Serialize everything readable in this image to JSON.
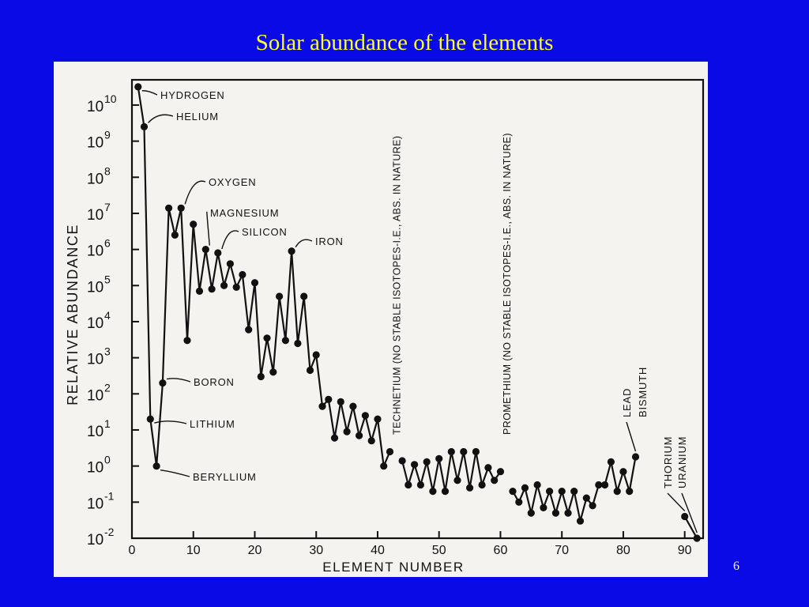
{
  "slide": {
    "title": "Solar abundance of the elements",
    "page_number": "6"
  },
  "chart_data": {
    "type": "line",
    "title": "",
    "xlabel": "ELEMENT NUMBER",
    "ylabel": "RELATIVE ABUNDANCE",
    "x_scale": "linear",
    "y_scale": "log",
    "xlim": [
      0,
      93
    ],
    "ylim": [
      0.01,
      50000000000
    ],
    "x_ticks": [
      0,
      10,
      20,
      30,
      40,
      50,
      60,
      70,
      80,
      90
    ],
    "y_ticks": [
      {
        "base": "10",
        "exp": "10",
        "value": 10000000000
      },
      {
        "base": "10",
        "exp": "9",
        "value": 1000000000
      },
      {
        "base": "10",
        "exp": "8",
        "value": 100000000
      },
      {
        "base": "10",
        "exp": "7",
        "value": 10000000
      },
      {
        "base": "10",
        "exp": "6",
        "value": 1000000
      },
      {
        "base": "10",
        "exp": "5",
        "value": 100000
      },
      {
        "base": "10",
        "exp": "4",
        "value": 10000
      },
      {
        "base": "10",
        "exp": "3",
        "value": 1000
      },
      {
        "base": "10",
        "exp": "2",
        "value": 100
      },
      {
        "base": "10",
        "exp": "1",
        "value": 10
      },
      {
        "base": "10",
        "exp": "0",
        "value": 1
      },
      {
        "base": "10",
        "exp": "-1",
        "value": 0.1
      },
      {
        "base": "10",
        "exp": "-2",
        "value": 0.01
      }
    ],
    "grid": false,
    "series": [
      {
        "segments": [
          [
            [
              1,
              32000000000.0
            ],
            [
              2,
              2500000000.0
            ],
            [
              3,
              20
            ],
            [
              4,
              1
            ],
            [
              5,
              200
            ],
            [
              6,
              14000000.0
            ],
            [
              7,
              2500000.0
            ],
            [
              8,
              14000000.0
            ],
            [
              9,
              3000
            ],
            [
              10,
              5000000.0
            ],
            [
              11,
              70000.0
            ],
            [
              12,
              1000000.0
            ],
            [
              13,
              80000.0
            ],
            [
              14,
              800000.0
            ],
            [
              15,
              100000.0
            ],
            [
              16,
              400000.0
            ],
            [
              17,
              90000.0
            ],
            [
              18,
              200000.0
            ],
            [
              19,
              6000.0
            ],
            [
              20,
              120000.0
            ],
            [
              21,
              300
            ],
            [
              22,
              3500.0
            ],
            [
              23,
              400
            ],
            [
              24,
              50000.0
            ],
            [
              25,
              3000.0
            ],
            [
              26,
              900000.0
            ],
            [
              27,
              2500.0
            ],
            [
              28,
              50000.0
            ],
            [
              29,
              450
            ],
            [
              30,
              1200
            ],
            [
              31,
              45
            ],
            [
              32,
              70
            ],
            [
              33,
              6
            ],
            [
              34,
              60
            ],
            [
              35,
              9
            ],
            [
              36,
              45
            ],
            [
              37,
              7
            ],
            [
              38,
              25
            ],
            [
              39,
              5
            ],
            [
              40,
              20
            ],
            [
              41,
              1
            ],
            [
              42,
              2.5
            ]
          ],
          [
            [
              44,
              1.4
            ],
            [
              45,
              0.3
            ],
            [
              46,
              1.1
            ],
            [
              47,
              0.3
            ],
            [
              48,
              1.3
            ],
            [
              49,
              0.2
            ],
            [
              50,
              1.6
            ],
            [
              51,
              0.2
            ],
            [
              52,
              2.5
            ],
            [
              53,
              0.4
            ],
            [
              54,
              2.5
            ],
            [
              55,
              0.25
            ],
            [
              56,
              2.5
            ],
            [
              57,
              0.3
            ],
            [
              58,
              0.9
            ],
            [
              59,
              0.4
            ],
            [
              60,
              0.7
            ]
          ],
          [
            [
              62,
              0.2
            ],
            [
              63,
              0.1
            ],
            [
              64,
              0.25
            ],
            [
              65,
              0.05
            ],
            [
              66,
              0.3
            ],
            [
              67,
              0.07
            ],
            [
              68,
              0.2
            ],
            [
              69,
              0.05
            ],
            [
              70,
              0.2
            ],
            [
              71,
              0.05
            ],
            [
              72,
              0.2
            ],
            [
              73,
              0.03
            ],
            [
              74,
              0.13
            ],
            [
              75,
              0.08
            ],
            [
              76,
              0.3
            ],
            [
              77,
              0.3
            ],
            [
              78,
              1.3
            ],
            [
              79,
              0.2
            ],
            [
              80,
              0.7
            ],
            [
              81,
              0.2
            ],
            [
              82,
              1.8
            ]
          ],
          [
            [
              90,
              0.04
            ],
            [
              92,
              0.01
            ]
          ]
        ]
      }
    ],
    "annotations": {
      "elements": [
        {
          "label": "HYDROGEN",
          "x": 1
        },
        {
          "label": "HELIUM",
          "x": 2
        },
        {
          "label": "LITHIUM",
          "x": 3
        },
        {
          "label": "BERYLLIUM",
          "x": 4
        },
        {
          "label": "BORON",
          "x": 5
        },
        {
          "label": "OXYGEN",
          "x": 8
        },
        {
          "label": "MAGNESIUM",
          "x": 12
        },
        {
          "label": "SILICON",
          "x": 14
        },
        {
          "label": "IRON",
          "x": 26
        },
        {
          "label": "LEAD",
          "x": 82
        },
        {
          "label": "BISMUTH",
          "x": 83
        },
        {
          "label": "THORIUM",
          "x": 90
        },
        {
          "label": "URANIUM",
          "x": 92
        }
      ],
      "gaps": [
        {
          "label": "TECHNETIUM (NO STABLE ISOTOPES-I.E., ABS. IN NATURE)",
          "x": 43
        },
        {
          "label": "PROMETHIUM (NO STABLE ISOTOPES-I.E., ABS. IN NATURE)",
          "x": 61
        }
      ]
    }
  }
}
